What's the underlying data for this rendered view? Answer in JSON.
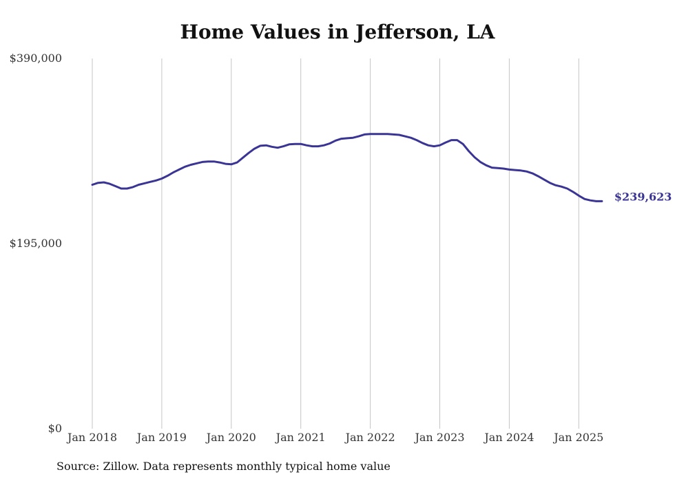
{
  "chart_data": {
    "type": "line",
    "title": "Home Values in Jefferson, LA",
    "xlabel": "",
    "ylabel": "",
    "ylim": [
      0,
      390000
    ],
    "y_ticks": [
      0,
      195000,
      390000
    ],
    "y_tick_labels": [
      "$0",
      "$195,000",
      "$390,000"
    ],
    "x_ticks": [
      "Jan 2018",
      "Jan 2019",
      "Jan 2020",
      "Jan 2021",
      "Jan 2022",
      "Jan 2023",
      "Jan 2024",
      "Jan 2025"
    ],
    "grid": "vertical",
    "line_color": "#3a3595",
    "series": [
      {
        "x": [
          "2018-01",
          "2018-02",
          "2018-03",
          "2018-04",
          "2018-05",
          "2018-06",
          "2018-07",
          "2018-08",
          "2018-09",
          "2018-10",
          "2018-11",
          "2018-12",
          "2019-01",
          "2019-02",
          "2019-03",
          "2019-04",
          "2019-05",
          "2019-06",
          "2019-07",
          "2019-08",
          "2019-09",
          "2019-10",
          "2019-11",
          "2019-12",
          "2020-01",
          "2020-02",
          "2020-03",
          "2020-04",
          "2020-05",
          "2020-06",
          "2020-07",
          "2020-08",
          "2020-09",
          "2020-10",
          "2020-11",
          "2020-12",
          "2021-01",
          "2021-02",
          "2021-03",
          "2021-04",
          "2021-05",
          "2021-06",
          "2021-07",
          "2021-08",
          "2021-09",
          "2021-10",
          "2021-11",
          "2021-12",
          "2022-01",
          "2022-02",
          "2022-03",
          "2022-04",
          "2022-05",
          "2022-06",
          "2022-07",
          "2022-08",
          "2022-09",
          "2022-10",
          "2022-11",
          "2022-12",
          "2023-01",
          "2023-02",
          "2023-03",
          "2023-04",
          "2023-05",
          "2023-06",
          "2023-07",
          "2023-08",
          "2023-09",
          "2023-10",
          "2023-11",
          "2023-12",
          "2024-01",
          "2024-02",
          "2024-03",
          "2024-04",
          "2024-05",
          "2024-06",
          "2024-07",
          "2024-08",
          "2024-09",
          "2024-10",
          "2024-11",
          "2024-12",
          "2025-01",
          "2025-02",
          "2025-03",
          "2025-04",
          "2025-05"
        ],
        "values": [
          257000,
          259000,
          259500,
          258000,
          255500,
          253000,
          253000,
          254500,
          257000,
          258500,
          260000,
          261500,
          263500,
          266500,
          270000,
          273000,
          276000,
          278000,
          279500,
          281000,
          281500,
          281500,
          280500,
          279000,
          278500,
          280500,
          285500,
          290500,
          295000,
          298000,
          298500,
          297000,
          296000,
          297500,
          299500,
          300000,
          300000,
          298500,
          297500,
          297500,
          298500,
          300500,
          303500,
          305500,
          306000,
          306500,
          308000,
          310000,
          310500,
          310500,
          310500,
          310500,
          310000,
          309500,
          308000,
          306500,
          304000,
          301000,
          298500,
          297500,
          298500,
          301500,
          304000,
          304000,
          300000,
          292500,
          286000,
          281000,
          277500,
          275000,
          274500,
          274000,
          273000,
          272500,
          272000,
          271000,
          269000,
          266000,
          262500,
          259000,
          256500,
          255000,
          253000,
          249500,
          245500,
          242000,
          240500,
          239623,
          239623
        ]
      }
    ],
    "end_label": "$239,623"
  },
  "source": "Source: Zillow. Data represents monthly typical home value"
}
